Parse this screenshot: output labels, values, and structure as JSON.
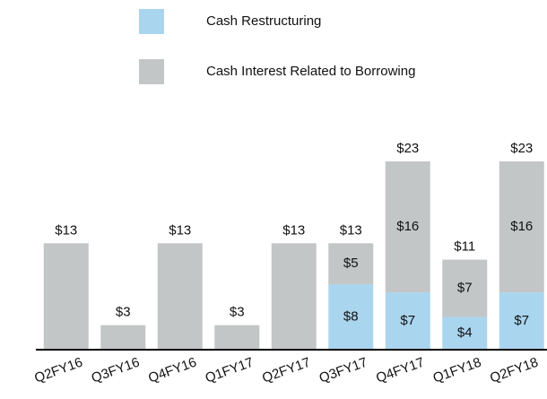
{
  "chart_data": {
    "type": "stacked_bar",
    "categories": [
      "Q2FY16",
      "Q3FY16",
      "Q4FY16",
      "Q1FY17",
      "Q2FY17",
      "Q3FY17",
      "Q4FY17",
      "Q1FY18",
      "Q2FY18"
    ],
    "series": [
      {
        "name": "Cash Restructuring",
        "color": "#aad5ef",
        "values": [
          null,
          null,
          null,
          null,
          null,
          8,
          7,
          4,
          7
        ],
        "value_labels": [
          null,
          null,
          null,
          null,
          null,
          "$8",
          "$7",
          "$4",
          "$7"
        ]
      },
      {
        "name": "Cash Interest Related to Borrowing",
        "color": "#c3c6c7",
        "values": [
          13,
          3,
          13,
          3,
          13,
          5,
          16,
          7,
          16
        ],
        "value_labels": [
          null,
          null,
          null,
          null,
          null,
          "$5",
          "$16",
          "$7",
          "$16"
        ]
      }
    ],
    "total_labels": [
      "$13",
      "$3",
      "$13",
      "$3",
      "$13",
      "$13",
      "$23",
      "$11",
      "$23"
    ],
    "ylim": [
      0,
      23
    ]
  }
}
